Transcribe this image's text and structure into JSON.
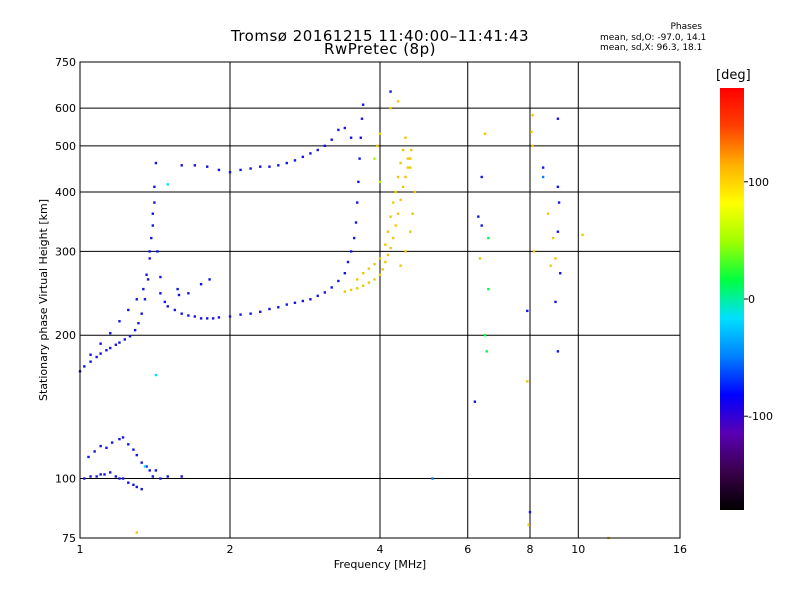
{
  "title_line1": "Tromsø 20161215 11:40:00–11:41:43",
  "title_line2": "RwPretec (8p)",
  "phases": {
    "heading": "Phases",
    "o_mode": "mean, sd,O: -97.0, 14.1",
    "x_mode": "mean, sd,X:  96.3, 18.1"
  },
  "colorbar": {
    "label": "[deg]",
    "range": [
      -180,
      180
    ],
    "ticks": [
      100,
      0,
      -100
    ],
    "colors": [
      "#000000",
      "#3a004a",
      "#5a00b4",
      "#0000ff",
      "#0080ff",
      "#00e0ff",
      "#00ff40",
      "#a0ff00",
      "#ffff00",
      "#ffb000",
      "#ff4000",
      "#ff0000"
    ]
  },
  "colors": {
    "o_mode": "#1414e6",
    "x_mode": "#f0c800",
    "grid": "#000000"
  },
  "chart_data": {
    "type": "scatter",
    "title": "Tromsø 20161215 11:40:00–11:41:43",
    "subtitle": "RwPretec (8p)",
    "xlabel": "Frequency [MHz]",
    "ylabel": "Stationary phase Virtual Height [km]",
    "x_scale": "log",
    "y_scale": "log",
    "xlim": [
      1,
      16
    ],
    "ylim": [
      75,
      750
    ],
    "x_ticks": [
      1,
      2,
      4,
      6,
      8,
      10,
      16
    ],
    "y_ticks": [
      75,
      100,
      200,
      300,
      400,
      500,
      600,
      750
    ],
    "grid": true,
    "series": [
      {
        "mode": "O",
        "phase_mean": -97.0,
        "phase_sd": 14.1,
        "points": [
          [
            1.0,
            168
          ],
          [
            1.02,
            172
          ],
          [
            1.05,
            176
          ],
          [
            1.08,
            180
          ],
          [
            1.1,
            183
          ],
          [
            1.13,
            186
          ],
          [
            1.15,
            188
          ],
          [
            1.18,
            191
          ],
          [
            1.2,
            193
          ],
          [
            1.23,
            196
          ],
          [
            1.26,
            199
          ],
          [
            1.29,
            205
          ],
          [
            1.31,
            212
          ],
          [
            1.33,
            222
          ],
          [
            1.35,
            238
          ],
          [
            1.37,
            262
          ],
          [
            1.38,
            290
          ],
          [
            1.39,
            320
          ],
          [
            1.4,
            360
          ],
          [
            1.41,
            410
          ],
          [
            1.42,
            460
          ],
          [
            1.05,
            182
          ],
          [
            1.1,
            192
          ],
          [
            1.15,
            202
          ],
          [
            1.2,
            214
          ],
          [
            1.25,
            226
          ],
          [
            1.3,
            238
          ],
          [
            1.34,
            250
          ],
          [
            1.36,
            268
          ],
          [
            1.38,
            300
          ],
          [
            1.4,
            340
          ],
          [
            1.41,
            380
          ],
          [
            1.43,
            300
          ],
          [
            1.45,
            265
          ],
          [
            1.45,
            245
          ],
          [
            1.48,
            235
          ],
          [
            1.5,
            230
          ],
          [
            1.55,
            226
          ],
          [
            1.6,
            222
          ],
          [
            1.65,
            220
          ],
          [
            1.7,
            219
          ],
          [
            1.75,
            217
          ],
          [
            1.8,
            217
          ],
          [
            1.85,
            217
          ],
          [
            1.9,
            218
          ],
          [
            2.0,
            219
          ],
          [
            2.1,
            221
          ],
          [
            2.2,
            222
          ],
          [
            2.3,
            224
          ],
          [
            2.4,
            227
          ],
          [
            2.5,
            229
          ],
          [
            2.6,
            232
          ],
          [
            2.7,
            234
          ],
          [
            2.8,
            236
          ],
          [
            2.9,
            238
          ],
          [
            3.0,
            242
          ],
          [
            3.1,
            246
          ],
          [
            3.2,
            252
          ],
          [
            3.3,
            260
          ],
          [
            3.4,
            270
          ],
          [
            3.45,
            285
          ],
          [
            3.5,
            300
          ],
          [
            3.55,
            320
          ],
          [
            3.58,
            345
          ],
          [
            3.6,
            380
          ],
          [
            3.62,
            420
          ],
          [
            3.64,
            470
          ],
          [
            3.66,
            520
          ],
          [
            3.68,
            570
          ],
          [
            3.7,
            610
          ],
          [
            3.5,
            520
          ],
          [
            3.4,
            545
          ],
          [
            3.3,
            540
          ],
          [
            3.2,
            515
          ],
          [
            3.1,
            500
          ],
          [
            3.0,
            490
          ],
          [
            2.9,
            482
          ],
          [
            2.8,
            474
          ],
          [
            2.7,
            466
          ],
          [
            2.6,
            460
          ],
          [
            2.5,
            455
          ],
          [
            2.4,
            452
          ],
          [
            2.3,
            452
          ],
          [
            2.2,
            448
          ],
          [
            2.1,
            445
          ],
          [
            2.0,
            440
          ],
          [
            1.9,
            445
          ],
          [
            1.8,
            452
          ],
          [
            1.7,
            455
          ],
          [
            1.6,
            455
          ],
          [
            1.82,
            262
          ],
          [
            1.75,
            256
          ],
          [
            1.65,
            245
          ],
          [
            1.57,
            250
          ],
          [
            1.58,
            243
          ],
          [
            1.02,
            100
          ],
          [
            1.05,
            101
          ],
          [
            1.08,
            101
          ],
          [
            1.1,
            102
          ],
          [
            1.12,
            102
          ],
          [
            1.15,
            103
          ],
          [
            1.18,
            101
          ],
          [
            1.2,
            100
          ],
          [
            1.22,
            100
          ],
          [
            1.25,
            98
          ],
          [
            1.28,
            97
          ],
          [
            1.3,
            96
          ],
          [
            1.33,
            95
          ],
          [
            1.4,
            101
          ],
          [
            1.45,
            100
          ],
          [
            1.04,
            111
          ],
          [
            1.07,
            114
          ],
          [
            1.1,
            117
          ],
          [
            1.13,
            116
          ],
          [
            1.16,
            119
          ],
          [
            1.2,
            121
          ],
          [
            1.22,
            122
          ],
          [
            1.25,
            118
          ],
          [
            1.28,
            115
          ],
          [
            1.3,
            112
          ],
          [
            1.33,
            108
          ],
          [
            1.36,
            106
          ],
          [
            1.38,
            104
          ],
          [
            1.42,
            104
          ],
          [
            1.5,
            101
          ],
          [
            1.6,
            101
          ],
          [
            4.2,
            650
          ],
          [
            6.4,
            430
          ],
          [
            6.2,
            145
          ],
          [
            7.9,
            225
          ],
          [
            8.0,
            85
          ],
          [
            9.1,
            570
          ],
          [
            9.1,
            410
          ],
          [
            9.15,
            380
          ],
          [
            9.1,
            330
          ],
          [
            9.0,
            235
          ],
          [
            9.1,
            185
          ],
          [
            9.2,
            270
          ],
          [
            6.3,
            355
          ],
          [
            6.4,
            340
          ],
          [
            8.5,
            450
          ]
        ]
      },
      {
        "mode": "X",
        "phase_mean": 96.3,
        "phase_sd": 18.1,
        "points": [
          [
            3.4,
            247
          ],
          [
            3.5,
            249
          ],
          [
            3.6,
            251
          ],
          [
            3.7,
            254
          ],
          [
            3.8,
            258
          ],
          [
            3.9,
            262
          ],
          [
            4.0,
            268
          ],
          [
            4.05,
            275
          ],
          [
            4.1,
            285
          ],
          [
            4.15,
            295
          ],
          [
            4.2,
            305
          ],
          [
            4.25,
            320
          ],
          [
            4.3,
            340
          ],
          [
            4.35,
            360
          ],
          [
            4.4,
            385
          ],
          [
            4.45,
            410
          ],
          [
            4.5,
            430
          ],
          [
            4.55,
            450
          ],
          [
            4.6,
            470
          ],
          [
            4.62,
            490
          ],
          [
            3.6,
            262
          ],
          [
            3.7,
            270
          ],
          [
            3.8,
            276
          ],
          [
            3.9,
            282
          ],
          [
            4.0,
            290
          ],
          [
            4.1,
            310
          ],
          [
            4.15,
            330
          ],
          [
            4.2,
            355
          ],
          [
            4.25,
            380
          ],
          [
            4.3,
            400
          ],
          [
            4.35,
            430
          ],
          [
            4.4,
            460
          ],
          [
            4.45,
            490
          ],
          [
            4.5,
            520
          ],
          [
            4.55,
            470
          ],
          [
            4.6,
            450
          ],
          [
            4.4,
            280
          ],
          [
            4.5,
            300
          ],
          [
            4.6,
            330
          ],
          [
            4.65,
            360
          ],
          [
            4.7,
            400
          ],
          [
            4.35,
            620
          ],
          [
            4.2,
            600
          ],
          [
            4.0,
            530
          ],
          [
            3.95,
            500
          ],
          [
            7.9,
            160
          ],
          [
            8.1,
            580
          ],
          [
            8.05,
            535
          ],
          [
            8.1,
            500
          ],
          [
            8.15,
            300
          ],
          [
            8.7,
            360
          ],
          [
            8.9,
            320
          ],
          [
            9.0,
            290
          ],
          [
            8.8,
            280
          ],
          [
            10.2,
            325
          ],
          [
            11.5,
            75
          ],
          [
            7.95,
            80
          ],
          [
            1.3,
            77
          ],
          [
            6.35,
            290
          ],
          [
            6.5,
            530
          ]
        ]
      }
    ],
    "extra_points": [
      {
        "x": 1.5,
        "y": 415,
        "phase": -10
      },
      {
        "x": 1.42,
        "y": 165,
        "phase": -20
      },
      {
        "x": 1.35,
        "y": 106,
        "phase": -30
      },
      {
        "x": 3.9,
        "y": 470,
        "phase": 40
      },
      {
        "x": 4.0,
        "y": 420,
        "phase": 60
      },
      {
        "x": 6.5,
        "y": 200,
        "phase": 20
      },
      {
        "x": 6.55,
        "y": 185,
        "phase": 10
      },
      {
        "x": 6.6,
        "y": 250,
        "phase": 20
      },
      {
        "x": 8.5,
        "y": 430,
        "phase": -40
      },
      {
        "x": 5.1,
        "y": 100,
        "phase": -60
      },
      {
        "x": 6.6,
        "y": 320,
        "phase": 10
      }
    ]
  }
}
